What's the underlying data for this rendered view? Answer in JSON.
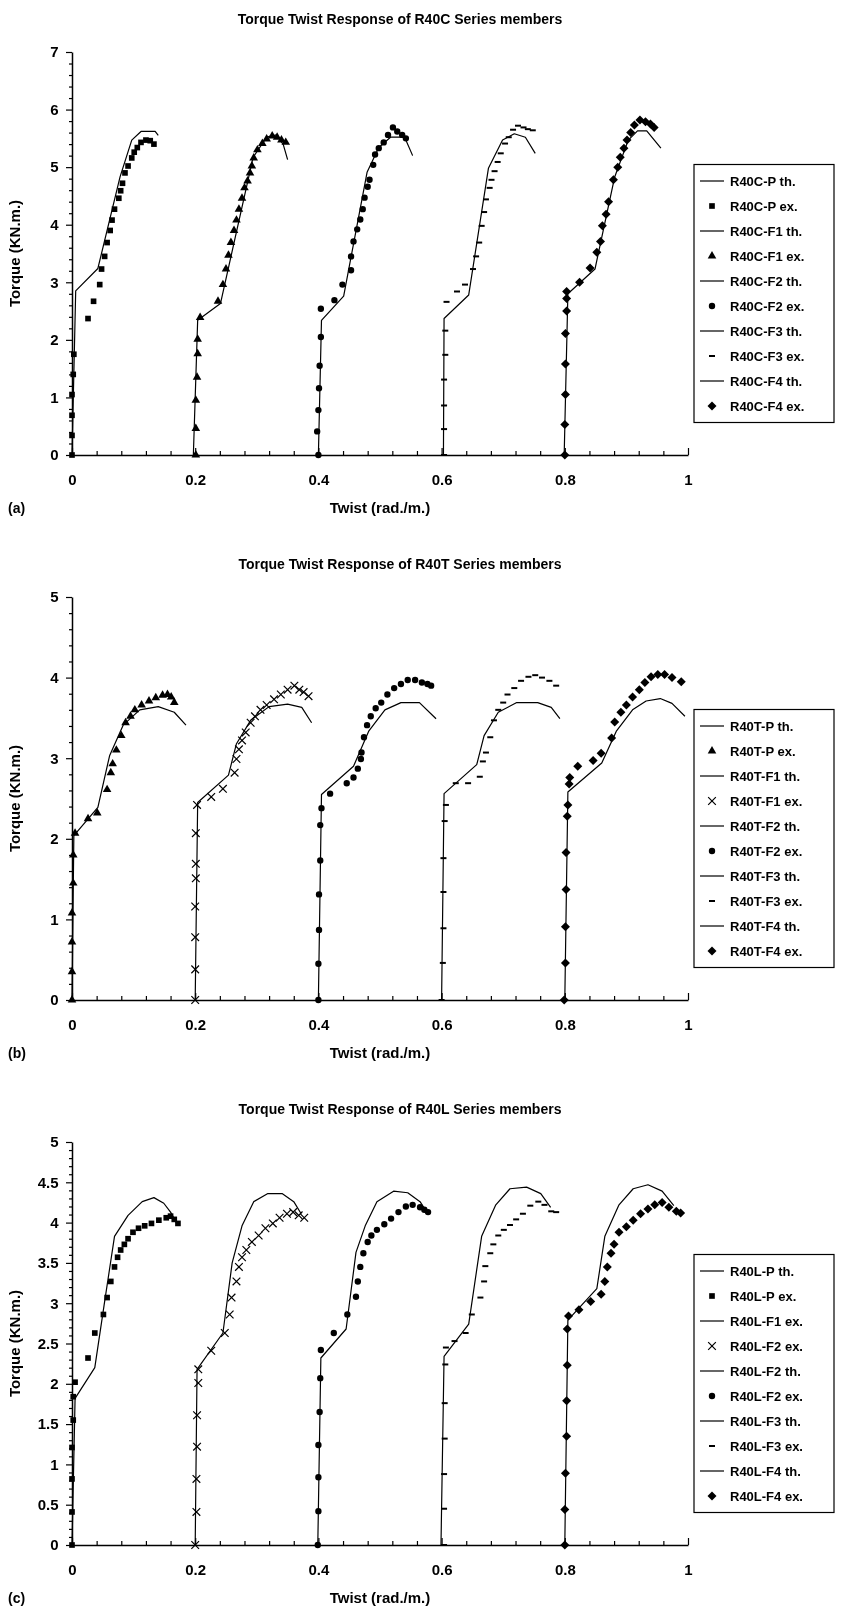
{
  "chart_data": [
    {
      "type": "line",
      "title": "Torque Twist Response of R40C Series members",
      "xlabel": "Twist (rad./m.)",
      "ylabel": "Torque (KN.m.)",
      "annotations": [
        "(a)"
      ],
      "legend": "right",
      "grid": false,
      "xlim": [
        0,
        1
      ],
      "ylim": [
        0,
        7
      ],
      "xticks": [
        0,
        {
          "value": 0.04,
          "label": null
        },
        {
          "value": 0.08,
          "label": null
        },
        {
          "value": 0.12,
          "label": null
        },
        {
          "value": 0.16,
          "label": null
        },
        0.2,
        {
          "value": 0.24,
          "label": null
        },
        {
          "value": 0.28,
          "label": null
        },
        {
          "value": 0.32,
          "label": null
        },
        {
          "value": 0.36,
          "label": null
        },
        0.4,
        {
          "value": 0.44,
          "label": null
        },
        {
          "value": 0.48,
          "label": null
        },
        {
          "value": 0.52,
          "label": null
        },
        {
          "value": 0.56,
          "label": null
        },
        0.6,
        {
          "value": 0.64,
          "label": null
        },
        {
          "value": 0.68,
          "label": null
        },
        {
          "value": 0.72,
          "label": null
        },
        {
          "value": 0.76,
          "label": null
        },
        0.8,
        {
          "value": 0.84,
          "label": null
        },
        {
          "value": 0.88,
          "label": null
        },
        {
          "value": 0.92,
          "label": null
        },
        {
          "value": 0.96,
          "label": null
        },
        1
      ],
      "yticks": [
        0,
        {
          "value": 0.2,
          "label": null
        },
        {
          "value": 0.4,
          "label": null
        },
        {
          "value": 0.6,
          "label": null
        },
        {
          "value": 0.8,
          "label": null
        },
        1,
        {
          "value": 1.2,
          "label": null
        },
        {
          "value": 1.4,
          "label": null
        },
        {
          "value": 1.6,
          "label": null
        },
        {
          "value": 1.8,
          "label": null
        },
        2,
        {
          "value": 2.2,
          "label": null
        },
        {
          "value": 2.4,
          "label": null
        },
        {
          "value": 2.6,
          "label": null
        },
        {
          "value": 2.8,
          "label": null
        },
        3,
        {
          "value": 3.2,
          "label": null
        },
        {
          "value": 3.4,
          "label": null
        },
        {
          "value": 3.6,
          "label": null
        },
        {
          "value": 3.8,
          "label": null
        },
        4,
        {
          "value": 4.2,
          "label": null
        },
        {
          "value": 4.4,
          "label": null
        },
        {
          "value": 4.6,
          "label": null
        },
        {
          "value": 4.8,
          "label": null
        },
        5,
        {
          "value": 5.2,
          "label": null
        },
        {
          "value": 5.4,
          "label": null
        },
        {
          "value": 5.6,
          "label": null
        },
        {
          "value": 5.8,
          "label": null
        },
        6,
        {
          "value": 6.2,
          "label": null
        },
        {
          "value": 6.4,
          "label": null
        },
        {
          "value": 6.6,
          "label": null
        },
        {
          "value": 6.8,
          "label": null
        },
        7
      ],
      "series": [
        {
          "name": "R40C-P th.",
          "color": "#000000",
          "x": [
            0,
            0.006,
            0.042,
            0.078,
            0.097,
            0.112,
            0.135,
            0.14
          ],
          "values": [
            0,
            2.85,
            3.24,
            4.83,
            5.47,
            5.62,
            5.62,
            5.55
          ]
        },
        {
          "name": "R40C-P ex.",
          "type": "scatter",
          "marker": "square",
          "color": "#000000",
          "x": [
            0,
            0,
            0,
            0,
            0.002,
            0.003,
            0.026,
            0.035,
            0.045,
            0.048,
            0.053,
            0.057,
            0.062,
            0.065,
            0.069,
            0.076,
            0.079,
            0.082,
            0.086,
            0.091,
            0.097,
            0.101,
            0.106,
            0.112,
            0.12,
            0.127,
            0.133
          ],
          "values": [
            0,
            0.34,
            0.69,
            1.05,
            1.4,
            1.75,
            2.37,
            2.67,
            2.96,
            3.23,
            3.45,
            3.69,
            3.9,
            4.08,
            4.27,
            4.46,
            4.59,
            4.72,
            4.9,
            5.02,
            5.16,
            5.26,
            5.34,
            5.43,
            5.47,
            5.46,
            5.4
          ]
        },
        {
          "name": "R40C-F1 th.",
          "color": "#000000",
          "x": [
            0.197,
            0.204,
            0.241,
            0.294,
            0.316,
            0.332,
            0.343,
            0.35
          ],
          "values": [
            0,
            2.34,
            2.63,
            5.17,
            5.52,
            5.56,
            5.39,
            5.13
          ]
        },
        {
          "name": "R40C-F1 ex.",
          "type": "scatter",
          "marker": "triangle",
          "color": "#000000",
          "x": [
            0.201,
            0.201,
            0.201,
            0.203,
            0.204,
            0.204,
            0.208,
            0.237,
            0.245,
            0.25,
            0.254,
            0.258,
            0.263,
            0.267,
            0.271,
            0.276,
            0.28,
            0.285,
            0.289,
            0.292,
            0.295,
            0.301,
            0.309,
            0.316,
            0.325,
            0.333,
            0.34,
            0.347
          ],
          "values": [
            0,
            0.46,
            0.95,
            1.35,
            1.76,
            2.01,
            2.39,
            2.67,
            2.96,
            3.23,
            3.47,
            3.69,
            3.9,
            4.08,
            4.27,
            4.46,
            4.64,
            4.76,
            4.9,
            5.02,
            5.16,
            5.3,
            5.41,
            5.49,
            5.54,
            5.52,
            5.47,
            5.43
          ]
        },
        {
          "name": "R40C-F2 th.",
          "color": "#000000",
          "x": [
            0.4,
            0.405,
            0.441,
            0.479,
            0.498,
            0.517,
            0.54,
            0.553
          ],
          "values": [
            0,
            2.34,
            2.76,
            4.91,
            5.34,
            5.52,
            5.52,
            5.2
          ]
        },
        {
          "name": "R40C-F2 ex.",
          "type": "scatter",
          "marker": "circle",
          "color": "#000000",
          "x": [
            0.4,
            0.398,
            0.4,
            0.401,
            0.402,
            0.404,
            0.404,
            0.426,
            0.439,
            0.453,
            0.453,
            0.457,
            0.463,
            0.468,
            0.472,
            0.475,
            0.48,
            0.483,
            0.489,
            0.492,
            0.498,
            0.506,
            0.513,
            0.521,
            0.528,
            0.536,
            0.542
          ],
          "values": [
            0,
            0.41,
            0.78,
            1.16,
            1.55,
            2.05,
            2.54,
            2.69,
            2.96,
            3.21,
            3.45,
            3.71,
            3.92,
            4.09,
            4.27,
            4.47,
            4.66,
            4.78,
            5.04,
            5.22,
            5.33,
            5.43,
            5.56,
            5.69,
            5.62,
            5.56,
            5.5
          ]
        },
        {
          "name": "R40C-F3 th.",
          "color": "#000000",
          "x": [
            0.603,
            0.604,
            0.644,
            0.676,
            0.699,
            0.718,
            0.736,
            0.752
          ],
          "values": [
            0,
            2.37,
            2.78,
            4.98,
            5.47,
            5.58,
            5.52,
            5.24
          ]
        },
        {
          "name": "R40C-F3 ex.",
          "type": "scatter",
          "color": "#000000",
          "x": [
            0.604,
            0.604,
            0.604,
            0.604,
            0.606,
            0.606,
            0.608,
            0.625,
            0.638,
            0.651,
            0.656,
            0.661,
            0.665,
            0.669,
            0.672,
            0.678,
            0.681,
            0.686,
            0.691,
            0.696,
            0.703,
            0.709,
            0.716,
            0.724,
            0.733,
            0.74,
            0.748
          ],
          "values": [
            0,
            0.45,
            0.86,
            1.31,
            1.74,
            2.16,
            2.66,
            2.84,
            2.96,
            3.23,
            3.45,
            3.69,
            3.98,
            4.22,
            4.44,
            4.64,
            4.78,
            4.93,
            5.09,
            5.24,
            5.41,
            5.52,
            5.65,
            5.72,
            5.69,
            5.66,
            5.64
          ]
        },
        {
          "name": "R40C-F4 th.",
          "color": "#000000",
          "x": [
            0.799,
            0.805,
            0.849,
            0.881,
            0.903,
            0.918,
            0.933,
            0.956
          ],
          "values": [
            0,
            2.8,
            3.23,
            4.83,
            5.47,
            5.63,
            5.63,
            5.33
          ]
        },
        {
          "name": "R40C-F4 ex.",
          "type": "scatter",
          "marker": "diamond",
          "color": "#000000",
          "x": [
            0.8,
            0.8,
            0.801,
            0.801,
            0.801,
            0.803,
            0.803,
            0.803,
            0.824,
            0.841,
            0.852,
            0.858,
            0.861,
            0.867,
            0.871,
            0.879,
            0.886,
            0.89,
            0.896,
            0.901,
            0.907,
            0.913,
            0.922,
            0.931,
            0.939,
            0.945
          ],
          "values": [
            0,
            0.53,
            1.05,
            1.58,
            2.11,
            2.5,
            2.72,
            2.84,
            3,
            3.25,
            3.52,
            3.71,
            3.98,
            4.18,
            4.4,
            4.78,
            5,
            5.17,
            5.33,
            5.47,
            5.6,
            5.73,
            5.82,
            5.79,
            5.75,
            5.69
          ]
        }
      ]
    },
    {
      "type": "line",
      "title": "Torque Twist Response of R40T Series members",
      "xlabel": "Twist (rad./m.)",
      "ylabel": "Torque (KN.m.)",
      "annotations": [
        "(b)"
      ],
      "legend": "right",
      "grid": false,
      "xlim": [
        0,
        1
      ],
      "ylim": [
        0,
        5
      ],
      "xticks": [
        0,
        {
          "value": 0.04,
          "label": null
        },
        {
          "value": 0.08,
          "label": null
        },
        {
          "value": 0.12,
          "label": null
        },
        {
          "value": 0.16,
          "label": null
        },
        0.2,
        {
          "value": 0.24,
          "label": null
        },
        {
          "value": 0.28,
          "label": null
        },
        {
          "value": 0.32,
          "label": null
        },
        {
          "value": 0.36,
          "label": null
        },
        0.4,
        {
          "value": 0.44,
          "label": null
        },
        {
          "value": 0.48,
          "label": null
        },
        {
          "value": 0.52,
          "label": null
        },
        {
          "value": 0.56,
          "label": null
        },
        0.6,
        {
          "value": 0.64,
          "label": null
        },
        {
          "value": 0.68,
          "label": null
        },
        {
          "value": 0.72,
          "label": null
        },
        {
          "value": 0.76,
          "label": null
        },
        0.8,
        {
          "value": 0.84,
          "label": null
        },
        {
          "value": 0.88,
          "label": null
        },
        {
          "value": 0.92,
          "label": null
        },
        {
          "value": 0.96,
          "label": null
        },
        1
      ],
      "yticks": [
        0,
        {
          "value": 0.2,
          "label": null
        },
        {
          "value": 0.4,
          "label": null
        },
        {
          "value": 0.6,
          "label": null
        },
        {
          "value": 0.8,
          "label": null
        },
        1,
        {
          "value": 1.2,
          "label": null
        },
        {
          "value": 1.4,
          "label": null
        },
        {
          "value": 1.6,
          "label": null
        },
        {
          "value": 1.8,
          "label": null
        },
        2,
        {
          "value": 2.2,
          "label": null
        },
        {
          "value": 2.4,
          "label": null
        },
        {
          "value": 2.6,
          "label": null
        },
        {
          "value": 2.8,
          "label": null
        },
        3,
        {
          "value": 3.2,
          "label": null
        },
        {
          "value": 3.4,
          "label": null
        },
        {
          "value": 3.6,
          "label": null
        },
        {
          "value": 3.8,
          "label": null
        },
        4,
        {
          "value": 4.2,
          "label": null
        },
        {
          "value": 4.4,
          "label": null
        },
        {
          "value": 4.6,
          "label": null
        },
        {
          "value": 4.8,
          "label": null
        },
        5
      ],
      "series": [
        {
          "name": "R40T-P th.",
          "color": "#000000",
          "x": [
            0,
            0.003,
            0.042,
            0.061,
            0.083,
            0.11,
            0.14,
            0.166,
            0.185
          ],
          "values": [
            0,
            2.04,
            2.39,
            3.03,
            3.41,
            3.6,
            3.64,
            3.57,
            3.41
          ]
        },
        {
          "name": "R40T-P ex.",
          "type": "scatter",
          "marker": "triangle",
          "color": "#000000",
          "x": [
            0,
            0,
            0,
            0,
            0.002,
            0.002,
            0.005,
            0.026,
            0.041,
            0.057,
            0.063,
            0.066,
            0.072,
            0.08,
            0.087,
            0.095,
            0.102,
            0.113,
            0.125,
            0.136,
            0.147,
            0.155,
            0.161,
            0.166
          ],
          "values": [
            0,
            0.35,
            0.72,
            1.08,
            1.45,
            1.8,
            2.07,
            2.25,
            2.32,
            2.61,
            2.82,
            2.93,
            3.1,
            3.28,
            3.44,
            3.52,
            3.6,
            3.66,
            3.71,
            3.75,
            3.78,
            3.79,
            3.76,
            3.69
          ]
        },
        {
          "name": "R40T-F1 th.",
          "color": "#000000",
          "x": [
            0.2,
            0.204,
            0.254,
            0.267,
            0.29,
            0.32,
            0.35,
            0.373,
            0.389
          ],
          "values": [
            0,
            2.45,
            2.79,
            3.18,
            3.47,
            3.64,
            3.67,
            3.63,
            3.44
          ]
        },
        {
          "name": "R40T-F1 ex.",
          "type": "scatter",
          "marker": "cross",
          "color": "#000000",
          "x": [
            0.2,
            0.2,
            0.2,
            0.2,
            0.201,
            0.201,
            0.201,
            0.203,
            0.226,
            0.245,
            0.264,
            0.267,
            0.271,
            0.276,
            0.282,
            0.29,
            0.297,
            0.306,
            0.316,
            0.328,
            0.339,
            0.35,
            0.361,
            0.369,
            0.376,
            0.384
          ],
          "values": [
            0,
            0.38,
            0.78,
            1.16,
            1.51,
            1.69,
            2.07,
            2.42,
            2.52,
            2.62,
            2.82,
            2.99,
            3.11,
            3.22,
            3.32,
            3.44,
            3.52,
            3.6,
            3.66,
            3.73,
            3.79,
            3.85,
            3.9,
            3.85,
            3.82,
            3.77
          ]
        },
        {
          "name": "R40T-F2 th.",
          "color": "#000000",
          "x": [
            0.4,
            0.405,
            0.457,
            0.482,
            0.508,
            0.534,
            0.564,
            0.591
          ],
          "values": [
            0,
            2.55,
            2.9,
            3.34,
            3.6,
            3.69,
            3.69,
            3.49
          ]
        },
        {
          "name": "R40T-F2 ex.",
          "type": "scatter",
          "marker": "circle",
          "color": "#000000",
          "x": [
            0.4,
            0.4,
            0.401,
            0.401,
            0.403,
            0.403,
            0.405,
            0.419,
            0.446,
            0.457,
            0.464,
            0.469,
            0.47,
            0.474,
            0.479,
            0.485,
            0.493,
            0.502,
            0.512,
            0.523,
            0.534,
            0.545,
            0.557,
            0.568,
            0.577,
            0.583
          ],
          "values": [
            0,
            0.45,
            0.87,
            1.31,
            1.73,
            2.17,
            2.38,
            2.56,
            2.69,
            2.76,
            2.87,
            2.99,
            3.07,
            3.26,
            3.41,
            3.52,
            3.62,
            3.69,
            3.79,
            3.87,
            3.92,
            3.97,
            3.97,
            3.94,
            3.92,
            3.9
          ]
        },
        {
          "name": "R40T-F3 th.",
          "color": "#000000",
          "x": [
            0.6,
            0.604,
            0.657,
            0.669,
            0.692,
            0.722,
            0.756,
            0.778,
            0.792
          ],
          "values": [
            0,
            2.56,
            2.92,
            3.28,
            3.57,
            3.69,
            3.69,
            3.63,
            3.49
          ]
        },
        {
          "name": "R40T-F3 ex.",
          "type": "scatter",
          "color": "#000000",
          "x": [
            0.6,
            0.602,
            0.603,
            0.603,
            0.603,
            0.605,
            0.607,
            0.623,
            0.643,
            0.662,
            0.667,
            0.672,
            0.679,
            0.685,
            0.692,
            0.7,
            0.707,
            0.718,
            0.729,
            0.741,
            0.752,
            0.763,
            0.775,
            0.786
          ],
          "values": [
            0,
            0.46,
            0.89,
            1.34,
            1.76,
            2.22,
            2.42,
            2.69,
            2.69,
            2.77,
            2.96,
            3.07,
            3.26,
            3.47,
            3.6,
            3.69,
            3.79,
            3.87,
            3.96,
            4.01,
            4.03,
            4,
            3.96,
            3.9
          ]
        },
        {
          "name": "R40T-F4 th.",
          "color": "#000000",
          "x": [
            0.8,
            0.805,
            0.86,
            0.884,
            0.91,
            0.932,
            0.955,
            0.974,
            0.995
          ],
          "values": [
            0,
            2.58,
            2.94,
            3.34,
            3.6,
            3.71,
            3.74,
            3.68,
            3.52
          ]
        },
        {
          "name": "R40T-F4 ex.",
          "type": "scatter",
          "marker": "diamond",
          "color": "#000000",
          "x": [
            0.799,
            0.801,
            0.801,
            0.802,
            0.802,
            0.804,
            0.805,
            0.807,
            0.808,
            0.821,
            0.846,
            0.859,
            0.876,
            0.881,
            0.891,
            0.9,
            0.91,
            0.921,
            0.93,
            0.94,
            0.951,
            0.962,
            0.974,
            0.989
          ],
          "values": [
            0,
            0.46,
            0.91,
            1.37,
            1.83,
            2.28,
            2.42,
            2.68,
            2.76,
            2.9,
            2.97,
            3.06,
            3.25,
            3.45,
            3.57,
            3.66,
            3.76,
            3.85,
            3.94,
            4.01,
            4.04,
            4.04,
            4,
            3.95
          ]
        }
      ]
    },
    {
      "type": "line",
      "title": "Torque Twist Response of R40L Series members",
      "xlabel": "Twist (rad./m.)",
      "ylabel": "Torque (KN.m.)",
      "annotations": [
        "(c)"
      ],
      "legend": "right",
      "grid": false,
      "xlim": [
        0,
        1
      ],
      "ylim": [
        0,
        5
      ],
      "xticks": [
        0,
        {
          "value": 0.04,
          "label": null
        },
        {
          "value": 0.08,
          "label": null
        },
        {
          "value": 0.12,
          "label": null
        },
        {
          "value": 0.16,
          "label": null
        },
        0.2,
        {
          "value": 0.24,
          "label": null
        },
        {
          "value": 0.28,
          "label": null
        },
        {
          "value": 0.32,
          "label": null
        },
        {
          "value": 0.36,
          "label": null
        },
        0.4,
        {
          "value": 0.44,
          "label": null
        },
        {
          "value": 0.48,
          "label": null
        },
        {
          "value": 0.52,
          "label": null
        },
        {
          "value": 0.56,
          "label": null
        },
        0.6,
        {
          "value": 0.64,
          "label": null
        },
        {
          "value": 0.68,
          "label": null
        },
        {
          "value": 0.72,
          "label": null
        },
        {
          "value": 0.76,
          "label": null
        },
        0.8,
        {
          "value": 0.84,
          "label": null
        },
        {
          "value": 0.88,
          "label": null
        },
        {
          "value": 0.92,
          "label": null
        },
        {
          "value": 0.96,
          "label": null
        },
        1
      ],
      "yticks": [
        0,
        {
          "value": 0.1,
          "label": null
        },
        {
          "value": 0.2,
          "label": null
        },
        {
          "value": 0.3,
          "label": null
        },
        {
          "value": 0.4,
          "label": null
        },
        0.5,
        {
          "value": 0.6,
          "label": null
        },
        {
          "value": 0.7,
          "label": null
        },
        {
          "value": 0.8,
          "label": null
        },
        {
          "value": 0.9,
          "label": null
        },
        1,
        {
          "value": 1.1,
          "label": null
        },
        {
          "value": 1.2,
          "label": null
        },
        {
          "value": 1.3,
          "label": null
        },
        {
          "value": 1.4,
          "label": null
        },
        1.5,
        {
          "value": 1.6,
          "label": null
        },
        {
          "value": 1.7,
          "label": null
        },
        {
          "value": 1.8,
          "label": null
        },
        {
          "value": 1.9,
          "label": null
        },
        2,
        {
          "value": 2.1,
          "label": null
        },
        {
          "value": 2.2,
          "label": null
        },
        {
          "value": 2.3,
          "label": null
        },
        {
          "value": 2.4,
          "label": null
        },
        2.5,
        {
          "value": 2.6,
          "label": null
        },
        {
          "value": 2.7,
          "label": null
        },
        {
          "value": 2.8,
          "label": null
        },
        {
          "value": 2.9,
          "label": null
        },
        3,
        {
          "value": 3.1,
          "label": null
        },
        {
          "value": 3.2,
          "label": null
        },
        {
          "value": 3.3,
          "label": null
        },
        {
          "value": 3.4,
          "label": null
        },
        3.5,
        {
          "value": 3.6,
          "label": null
        },
        {
          "value": 3.7,
          "label": null
        },
        {
          "value": 3.8,
          "label": null
        },
        {
          "value": 3.9,
          "label": null
        },
        4,
        {
          "value": 4.1,
          "label": null
        },
        {
          "value": 4.2,
          "label": null
        },
        {
          "value": 4.3,
          "label": null
        },
        {
          "value": 4.4,
          "label": null
        },
        4.5,
        {
          "value": 4.6,
          "label": null
        },
        {
          "value": 4.7,
          "label": null
        },
        {
          "value": 4.8,
          "label": null
        },
        {
          "value": 4.9,
          "label": null
        },
        5
      ],
      "series": [
        {
          "name": "R40L-P th.",
          "color": "#000000",
          "x": [
            0,
            0.005,
            0.037,
            0.052,
            0.069,
            0.091,
            0.114,
            0.133,
            0.149,
            0.16,
            0.17
          ],
          "values": [
            0,
            1.82,
            2.2,
            2.97,
            3.83,
            4.09,
            4.26,
            4.31,
            4.24,
            4.13,
            3.99
          ]
        },
        {
          "name": "R40L-P ex.",
          "type": "scatter",
          "marker": "square",
          "color": "#000000",
          "x": [
            0,
            0,
            0,
            0,
            0.002,
            0.002,
            0.005,
            0.026,
            0.037,
            0.051,
            0.057,
            0.063,
            0.069,
            0.074,
            0.079,
            0.085,
            0.091,
            0.099,
            0.108,
            0.118,
            0.129,
            0.141,
            0.153,
            0.16,
            0.166,
            0.172
          ],
          "values": [
            0,
            0.41,
            0.82,
            1.21,
            1.55,
            1.84,
            2.02,
            2.32,
            2.63,
            2.86,
            3.07,
            3.27,
            3.45,
            3.57,
            3.66,
            3.73,
            3.8,
            3.88,
            3.93,
            3.96,
            3.99,
            4.03,
            4.06,
            4.08,
            4.04,
            3.99
          ]
        },
        {
          "name": "R40L-F1 ex.",
          "color": "#000000",
          "x": [
            0.2,
            0.203,
            0.245,
            0.26,
            0.276,
            0.295,
            0.318,
            0.341,
            0.36,
            0.372
          ],
          "values": [
            0,
            2.18,
            2.63,
            3.5,
            3.96,
            4.26,
            4.36,
            4.36,
            4.26,
            4.11
          ]
        },
        {
          "name": "R40L-F2 ex.",
          "type": "scatter",
          "marker": "cross",
          "color": "#000000",
          "x": [
            0.2,
            0.202,
            0.202,
            0.203,
            0.203,
            0.205,
            0.205,
            0.226,
            0.248,
            0.256,
            0.259,
            0.267,
            0.271,
            0.276,
            0.283,
            0.292,
            0.303,
            0.314,
            0.326,
            0.337,
            0.349,
            0.359,
            0.368,
            0.377
          ],
          "values": [
            0,
            0.41,
            0.82,
            1.22,
            1.61,
            2.01,
            2.18,
            2.41,
            2.63,
            2.86,
            3.07,
            3.27,
            3.45,
            3.57,
            3.66,
            3.76,
            3.84,
            3.93,
            3.99,
            4.06,
            4.11,
            4.13,
            4.09,
            4.06
          ]
        },
        {
          "name": "R40L-F2 th.",
          "color": "#000000",
          "x": [
            0.399,
            0.404,
            0.445,
            0.461,
            0.476,
            0.495,
            0.522,
            0.545,
            0.565,
            0.576
          ],
          "values": [
            0,
            2.32,
            2.68,
            3.63,
            3.96,
            4.26,
            4.39,
            4.37,
            4.26,
            4.13
          ]
        },
        {
          "name": "R40L-F2 ex.",
          "type": "scatter",
          "marker": "circle",
          "color": "#000000",
          "x": [
            0.399,
            0.4,
            0.4,
            0.4,
            0.402,
            0.403,
            0.404,
            0.425,
            0.447,
            0.461,
            0.464,
            0.468,
            0.473,
            0.48,
            0.486,
            0.495,
            0.507,
            0.518,
            0.53,
            0.542,
            0.553,
            0.565,
            0.572,
            0.578
          ],
          "values": [
            0,
            0.42,
            0.84,
            1.24,
            1.65,
            2.07,
            2.42,
            2.63,
            2.86,
            3.08,
            3.27,
            3.45,
            3.62,
            3.76,
            3.84,
            3.91,
            3.98,
            4.05,
            4.13,
            4.2,
            4.22,
            4.19,
            4.16,
            4.13
          ]
        },
        {
          "name": "R40L-F3 th.",
          "color": "#000000",
          "x": [
            0.599,
            0.604,
            0.644,
            0.665,
            0.688,
            0.711,
            0.738,
            0.761,
            0.777
          ],
          "values": [
            0,
            2.34,
            2.74,
            3.83,
            4.22,
            4.42,
            4.44,
            4.36,
            4.19
          ]
        },
        {
          "name": "R40L-F3 ex.",
          "type": "scatter",
          "color": "#000000",
          "x": [
            0.604,
            0.604,
            0.604,
            0.605,
            0.605,
            0.606,
            0.607,
            0.621,
            0.639,
            0.649,
            0.663,
            0.669,
            0.671,
            0.679,
            0.684,
            0.692,
            0.701,
            0.711,
            0.721,
            0.732,
            0.744,
            0.757,
            0.767,
            0.778,
            0.786
          ],
          "values": [
            0,
            0.45,
            0.88,
            1.32,
            1.76,
            2.24,
            2.45,
            2.53,
            2.63,
            2.86,
            3.07,
            3.27,
            3.46,
            3.62,
            3.73,
            3.84,
            3.91,
            3.97,
            4.04,
            4.11,
            4.21,
            4.26,
            4.22,
            4.14,
            4.13
          ]
        },
        {
          "name": "R40L-F4 th.",
          "color": "#000000",
          "x": [
            0.8,
            0.805,
            0.852,
            0.865,
            0.888,
            0.911,
            0.935,
            0.958,
            0.977
          ],
          "values": [
            0,
            2.79,
            3.18,
            3.83,
            4.22,
            4.42,
            4.47,
            4.39,
            4.21
          ]
        },
        {
          "name": "R40L-F4 ex.",
          "type": "scatter",
          "marker": "diamond",
          "color": "#000000",
          "x": [
            0.8,
            0.8,
            0.801,
            0.803,
            0.803,
            0.804,
            0.804,
            0.806,
            0.823,
            0.842,
            0.859,
            0.865,
            0.869,
            0.875,
            0.88,
            0.888,
            0.9,
            0.911,
            0.923,
            0.935,
            0.946,
            0.958,
            0.969,
            0.981,
            0.988
          ],
          "values": [
            0,
            0.44,
            0.89,
            1.35,
            1.79,
            2.23,
            2.68,
            2.84,
            2.92,
            3.02,
            3.11,
            3.27,
            3.45,
            3.62,
            3.73,
            3.88,
            3.95,
            4.03,
            4.11,
            4.17,
            4.22,
            4.25,
            4.19,
            4.14,
            4.12
          ]
        }
      ]
    }
  ]
}
